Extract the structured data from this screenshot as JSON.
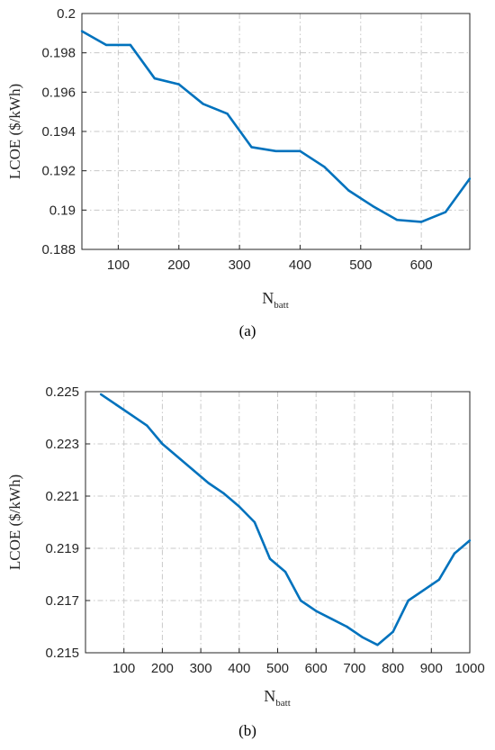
{
  "chart_data": [
    {
      "type": "line",
      "caption": "(a)",
      "xlabel": "N",
      "xlabel_sub": "batt",
      "ylabel": "LCOE ($/kWh)",
      "xlim": [
        40,
        680
      ],
      "ylim": [
        0.188,
        0.2
      ],
      "xticks": [
        100,
        200,
        300,
        400,
        500,
        600
      ],
      "yticks": [
        0.188,
        0.19,
        0.192,
        0.194,
        0.196,
        0.198,
        0.2
      ],
      "ytick_labels": [
        "0.188",
        "0.19",
        "0.192",
        "0.194",
        "0.196",
        "0.198",
        "0.2"
      ],
      "grid": true,
      "color": "#0072BD",
      "x": [
        40,
        80,
        120,
        160,
        200,
        240,
        280,
        320,
        360,
        400,
        440,
        480,
        520,
        560,
        600,
        640,
        680
      ],
      "y": [
        0.1991,
        0.1984,
        0.1984,
        0.1967,
        0.1964,
        0.1954,
        0.1949,
        0.1932,
        0.193,
        0.193,
        0.1922,
        0.191,
        0.1902,
        0.1895,
        0.1894,
        0.1899,
        0.1916
      ]
    },
    {
      "type": "line",
      "caption": "(b)",
      "xlabel": "N",
      "xlabel_sub": "batt",
      "ylabel": "LCOE ($/kWh)",
      "xlim": [
        0,
        1000
      ],
      "ylim": [
        0.215,
        0.225
      ],
      "xticks": [
        100,
        200,
        300,
        400,
        500,
        600,
        700,
        800,
        900,
        1000
      ],
      "yticks": [
        0.215,
        0.217,
        0.219,
        0.221,
        0.223,
        0.225
      ],
      "ytick_labels": [
        "0.215",
        "0.217",
        "0.219",
        "0.221",
        "0.223",
        "0.225"
      ],
      "grid": true,
      "color": "#0072BD",
      "x": [
        40,
        80,
        120,
        160,
        200,
        240,
        280,
        320,
        360,
        400,
        440,
        480,
        520,
        560,
        600,
        640,
        680,
        720,
        760,
        800,
        840,
        880,
        920,
        960,
        1000
      ],
      "y": [
        0.2249,
        0.2245,
        0.2241,
        0.2237,
        0.223,
        0.2225,
        0.222,
        0.2215,
        0.2211,
        0.2206,
        0.22,
        0.2186,
        0.2181,
        0.217,
        0.2166,
        0.2163,
        0.216,
        0.2156,
        0.2153,
        0.2158,
        0.217,
        0.2174,
        0.2178,
        0.2188,
        0.2193
      ]
    }
  ]
}
